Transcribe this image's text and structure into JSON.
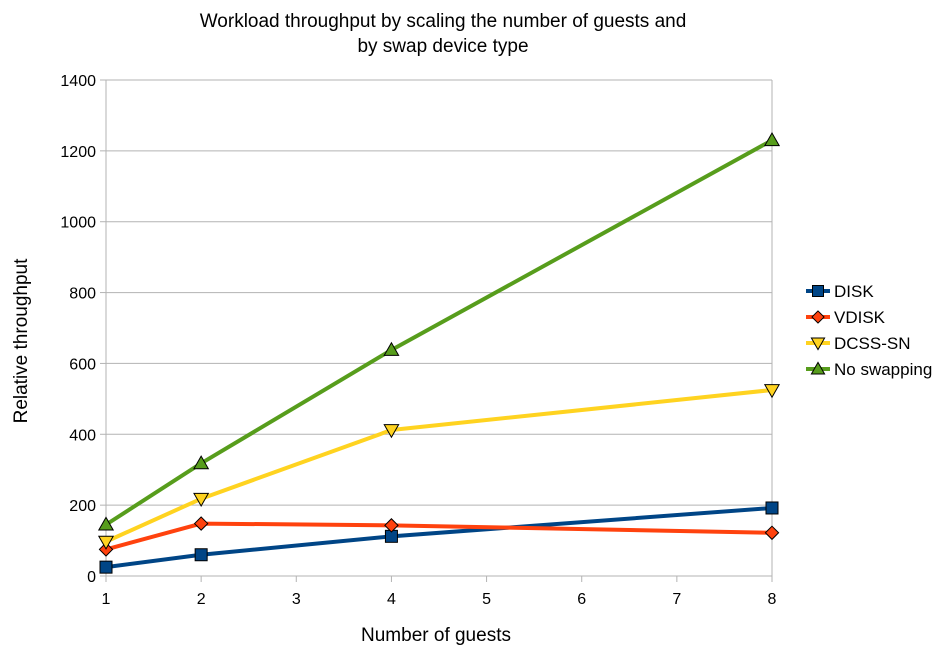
{
  "chart_data": {
    "type": "line",
    "title": [
      "Workload throughput by scaling the number of guests and",
      "by swap device type"
    ],
    "xlabel": "Number of guests",
    "ylabel": "Relative throughput",
    "x": [
      1,
      2,
      4,
      8
    ],
    "xticks": [
      "1",
      "2",
      "3",
      "4",
      "5",
      "6",
      "7",
      "8"
    ],
    "xlim": [
      1,
      8
    ],
    "ylim": [
      0,
      1400
    ],
    "yticks": [
      0,
      200,
      400,
      600,
      800,
      1000,
      1200,
      1400
    ],
    "grid": "horizontal",
    "legend_position": "right",
    "series": [
      {
        "name": "DISK",
        "values": [
          25,
          60,
          112,
          192
        ],
        "color": "#004586",
        "marker": "square"
      },
      {
        "name": "VDISK",
        "values": [
          75,
          148,
          143,
          122
        ],
        "color": "#ff420e",
        "marker": "diamond"
      },
      {
        "name": "DCSS-SN",
        "values": [
          97,
          218,
          412,
          525
        ],
        "color": "#ffd320",
        "marker": "triangle-down"
      },
      {
        "name": "No swapping",
        "values": [
          145,
          318,
          638,
          1230
        ],
        "color": "#579d1c",
        "marker": "triangle-up"
      }
    ]
  }
}
